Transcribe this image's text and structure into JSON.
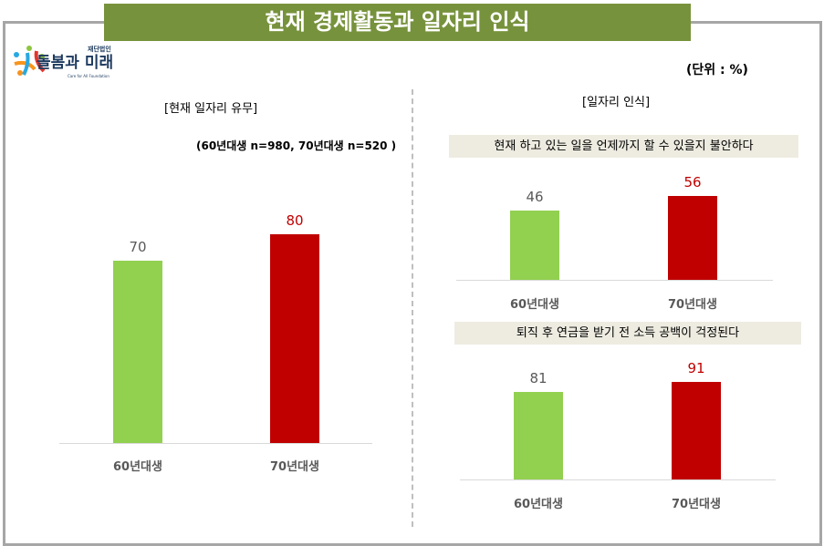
{
  "title": "현재 경제활동과 일자리 인식",
  "logo": {
    "org_type": "재단법인",
    "name": "돌봄과 미래",
    "subtitle": "Care for All Foundation"
  },
  "unit": "(단위 : %)",
  "colors": {
    "green": "#92d050",
    "red": "#c00000",
    "title_bg": "#77923c"
  },
  "chart_data": [
    {
      "type": "bar",
      "title": "[현재 일자리 유무]",
      "note": "(60년대생 n=980, 70년대생 n=520 )",
      "categories": [
        "60년대생",
        "70년대생"
      ],
      "values": [
        70,
        80
      ]
    },
    {
      "type": "bar",
      "section_title": "[일자리 인식]",
      "title": "현재 하고 있는 일을 언제까지 할 수 있을지 불안하다",
      "categories": [
        "60년대생",
        "70년대생"
      ],
      "values": [
        46,
        56
      ]
    },
    {
      "type": "bar",
      "title": "퇴직 후 연금을 받기 전 소득 공백이 걱정된다",
      "categories": [
        "60년대생",
        "70년대생"
      ],
      "values": [
        81,
        91
      ]
    }
  ]
}
